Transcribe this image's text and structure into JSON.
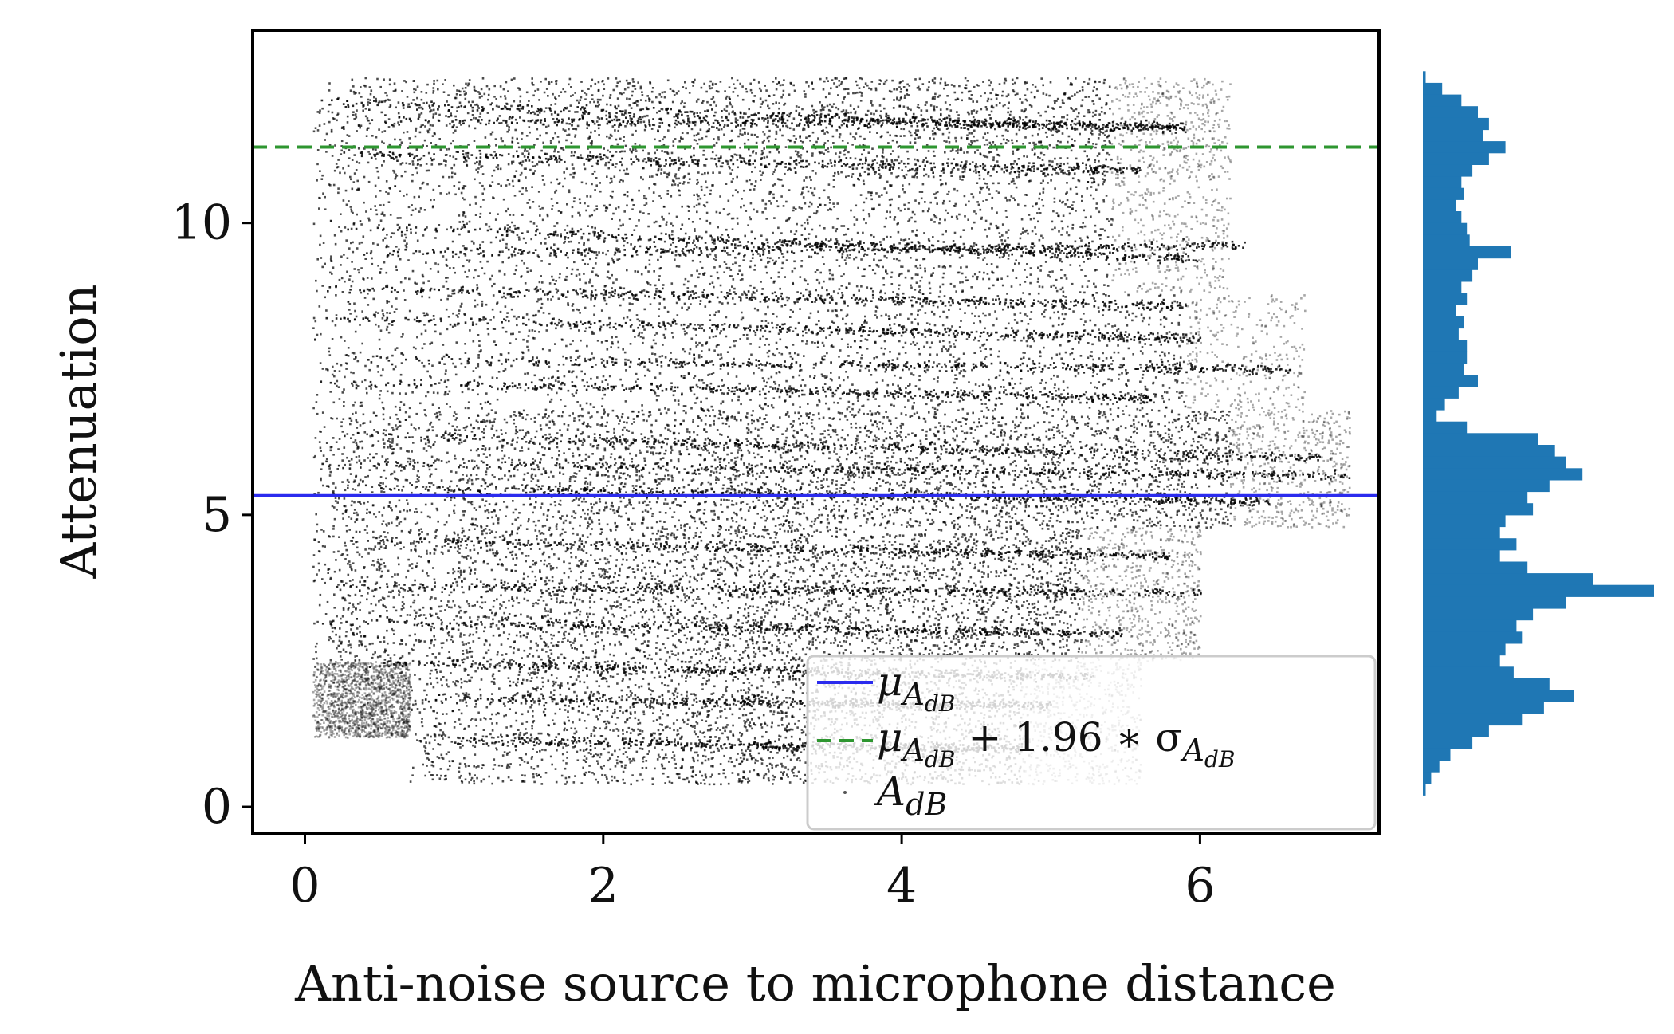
{
  "chart_data": {
    "type": "scatter",
    "xlabel": "Anti-noise source to microphone distance",
    "ylabel": "Attenuation",
    "xlim": [
      -0.35,
      7.2
    ],
    "ylim": [
      -0.45,
      13.3
    ],
    "x_ticks": [
      0,
      2,
      4,
      6
    ],
    "y_ticks": [
      0,
      5,
      10
    ],
    "x_tick_labels": [
      "0",
      "2",
      "4",
      "6"
    ],
    "y_tick_labels": [
      "0",
      "5",
      "10"
    ],
    "grid": false,
    "legend_position": "lower-right",
    "series": [
      {
        "kind": "hline",
        "style": "solid",
        "color": "#2b2bee",
        "value": 5.33,
        "legend": {
          "base": "μ",
          "sub": "A",
          "subsub": "dB",
          "tail": ""
        }
      },
      {
        "kind": "hline",
        "style": "dashed",
        "color": "#2e9630",
        "value": 11.3,
        "legend": {
          "base": "μ",
          "sub": "A",
          "subsub": "dB",
          "tail": "+ 1.96 ∗ σ",
          "tail_sub": "A",
          "tail_subsub": "dB"
        }
      },
      {
        "kind": "scatter",
        "color": "#000000",
        "legend": {
          "base": "A",
          "sub": "dB"
        },
        "note_bands": [
          {
            "y_min": 10.8,
            "y_max": 12.5,
            "x_min": 0.05,
            "x_max": 6.2,
            "density": 1.0
          },
          {
            "y_min": 8.8,
            "y_max": 10.8,
            "x_min": 0.05,
            "x_max": 6.2,
            "density": 0.8
          },
          {
            "y_min": 6.8,
            "y_max": 8.8,
            "x_min": 0.05,
            "x_max": 6.7,
            "density": 0.8
          },
          {
            "y_min": 4.8,
            "y_max": 6.8,
            "x_min": 0.05,
            "x_max": 7.0,
            "density": 1.6
          },
          {
            "y_min": 2.5,
            "y_max": 4.8,
            "x_min": 0.05,
            "x_max": 6.0,
            "density": 1.6
          },
          {
            "y_min": 0.4,
            "y_max": 2.5,
            "x_min": 0.7,
            "x_max": 5.6,
            "density": 1.2
          },
          {
            "y_min": 1.2,
            "y_max": 2.5,
            "x_min": 0.05,
            "x_max": 0.7,
            "density": 0.6
          }
        ],
        "streaks": [
          {
            "y": 12.1,
            "x0": 0.05,
            "x1": 5.9,
            "slope": -0.08
          },
          {
            "y": 11.8,
            "x0": 0.3,
            "x1": 5.9,
            "slope": -0.02
          },
          {
            "y": 11.2,
            "x0": 0.1,
            "x1": 5.6,
            "slope": -0.05
          },
          {
            "y": 10.0,
            "x0": 0.05,
            "x1": 6.0,
            "slope": -0.1
          },
          {
            "y": 9.5,
            "x0": 0.3,
            "x1": 6.3,
            "slope": 0.02
          },
          {
            "y": 8.9,
            "x0": 0.1,
            "x1": 5.9,
            "slope": -0.05
          },
          {
            "y": 8.4,
            "x0": 0.1,
            "x1": 6.0,
            "slope": -0.06
          },
          {
            "y": 7.7,
            "x0": 0.3,
            "x1": 6.6,
            "slope": -0.03
          },
          {
            "y": 7.3,
            "x0": 0.1,
            "x1": 5.7,
            "slope": -0.05
          },
          {
            "y": 6.4,
            "x0": 0.05,
            "x1": 6.8,
            "slope": -0.06
          },
          {
            "y": 5.9,
            "x0": 0.1,
            "x1": 7.0,
            "slope": -0.03
          },
          {
            "y": 5.5,
            "x0": 0.3,
            "x1": 6.5,
            "slope": -0.04
          },
          {
            "y": 4.6,
            "x0": 0.05,
            "x1": 5.8,
            "slope": -0.05
          },
          {
            "y": 3.8,
            "x0": 0.05,
            "x1": 6.0,
            "slope": -0.02
          },
          {
            "y": 3.2,
            "x0": 0.1,
            "x1": 5.5,
            "slope": -0.04
          },
          {
            "y": 2.5,
            "x0": 0.3,
            "x1": 5.3,
            "slope": -0.05
          },
          {
            "y": 1.9,
            "x0": 0.8,
            "x1": 5.0,
            "slope": -0.03
          },
          {
            "y": 1.2,
            "x0": 0.9,
            "x1": 4.8,
            "slope": -0.04
          }
        ]
      }
    ],
    "marginal_histogram": {
      "orientation": "horizontal",
      "color": "#1f77b4",
      "bins": [
        {
          "y": 12.5,
          "count": 1
        },
        {
          "y": 12.3,
          "count": 7
        },
        {
          "y": 12.1,
          "count": 14
        },
        {
          "y": 11.9,
          "count": 20
        },
        {
          "y": 11.7,
          "count": 24
        },
        {
          "y": 11.5,
          "count": 22
        },
        {
          "y": 11.3,
          "count": 30
        },
        {
          "y": 11.1,
          "count": 24
        },
        {
          "y": 10.9,
          "count": 18
        },
        {
          "y": 10.7,
          "count": 14
        },
        {
          "y": 10.5,
          "count": 15
        },
        {
          "y": 10.3,
          "count": 12
        },
        {
          "y": 10.1,
          "count": 14
        },
        {
          "y": 9.9,
          "count": 16
        },
        {
          "y": 9.7,
          "count": 17
        },
        {
          "y": 9.5,
          "count": 32
        },
        {
          "y": 9.3,
          "count": 20
        },
        {
          "y": 9.1,
          "count": 18
        },
        {
          "y": 8.9,
          "count": 14
        },
        {
          "y": 8.7,
          "count": 16
        },
        {
          "y": 8.5,
          "count": 12
        },
        {
          "y": 8.3,
          "count": 15
        },
        {
          "y": 8.1,
          "count": 13
        },
        {
          "y": 7.9,
          "count": 16
        },
        {
          "y": 7.7,
          "count": 16
        },
        {
          "y": 7.5,
          "count": 15
        },
        {
          "y": 7.3,
          "count": 20
        },
        {
          "y": 7.1,
          "count": 13
        },
        {
          "y": 6.9,
          "count": 8
        },
        {
          "y": 6.7,
          "count": 5
        },
        {
          "y": 6.5,
          "count": 16
        },
        {
          "y": 6.3,
          "count": 42
        },
        {
          "y": 6.1,
          "count": 48
        },
        {
          "y": 5.9,
          "count": 52
        },
        {
          "y": 5.7,
          "count": 58
        },
        {
          "y": 5.5,
          "count": 46
        },
        {
          "y": 5.3,
          "count": 38
        },
        {
          "y": 5.1,
          "count": 40
        },
        {
          "y": 4.9,
          "count": 30
        },
        {
          "y": 4.7,
          "count": 28
        },
        {
          "y": 4.5,
          "count": 34
        },
        {
          "y": 4.3,
          "count": 28
        },
        {
          "y": 4.1,
          "count": 38
        },
        {
          "y": 3.9,
          "count": 62
        },
        {
          "y": 3.7,
          "count": 84
        },
        {
          "y": 3.5,
          "count": 52
        },
        {
          "y": 3.3,
          "count": 40
        },
        {
          "y": 3.1,
          "count": 34
        },
        {
          "y": 2.9,
          "count": 36
        },
        {
          "y": 2.7,
          "count": 30
        },
        {
          "y": 2.5,
          "count": 28
        },
        {
          "y": 2.3,
          "count": 33
        },
        {
          "y": 2.1,
          "count": 46
        },
        {
          "y": 1.9,
          "count": 55
        },
        {
          "y": 1.7,
          "count": 44
        },
        {
          "y": 1.5,
          "count": 36
        },
        {
          "y": 1.3,
          "count": 24
        },
        {
          "y": 1.1,
          "count": 18
        },
        {
          "y": 0.9,
          "count": 10
        },
        {
          "y": 0.7,
          "count": 6
        },
        {
          "y": 0.5,
          "count": 3
        },
        {
          "y": 0.3,
          "count": 1
        }
      ]
    }
  }
}
